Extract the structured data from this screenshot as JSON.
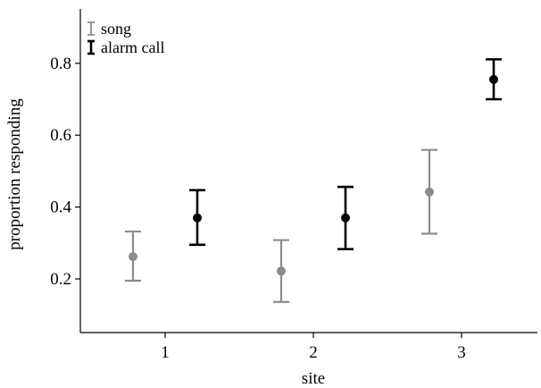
{
  "chart_data": {
    "type": "scatter",
    "xlabel": "site",
    "ylabel": "proportion responding",
    "categories": [
      "1",
      "2",
      "3"
    ],
    "yticks": [
      "0.2",
      "0.4",
      "0.6",
      "0.8"
    ],
    "ylim": [
      0.04,
      0.95
    ],
    "legend_position": "top-left",
    "grid": false,
    "series": [
      {
        "name": "song",
        "color": "#8c8c8c",
        "points": [
          {
            "category": "1",
            "value": 0.262,
            "lower": 0.195,
            "upper": 0.332
          },
          {
            "category": "2",
            "value": 0.222,
            "lower": 0.136,
            "upper": 0.308
          },
          {
            "category": "3",
            "value": 0.442,
            "lower": 0.326,
            "upper": 0.559
          }
        ]
      },
      {
        "name": "alarm call",
        "color": "#000000",
        "points": [
          {
            "category": "1",
            "value": 0.37,
            "lower": 0.295,
            "upper": 0.447
          },
          {
            "category": "2",
            "value": 0.37,
            "lower": 0.283,
            "upper": 0.456
          },
          {
            "category": "3",
            "value": 0.755,
            "lower": 0.7,
            "upper": 0.811
          }
        ]
      }
    ]
  }
}
